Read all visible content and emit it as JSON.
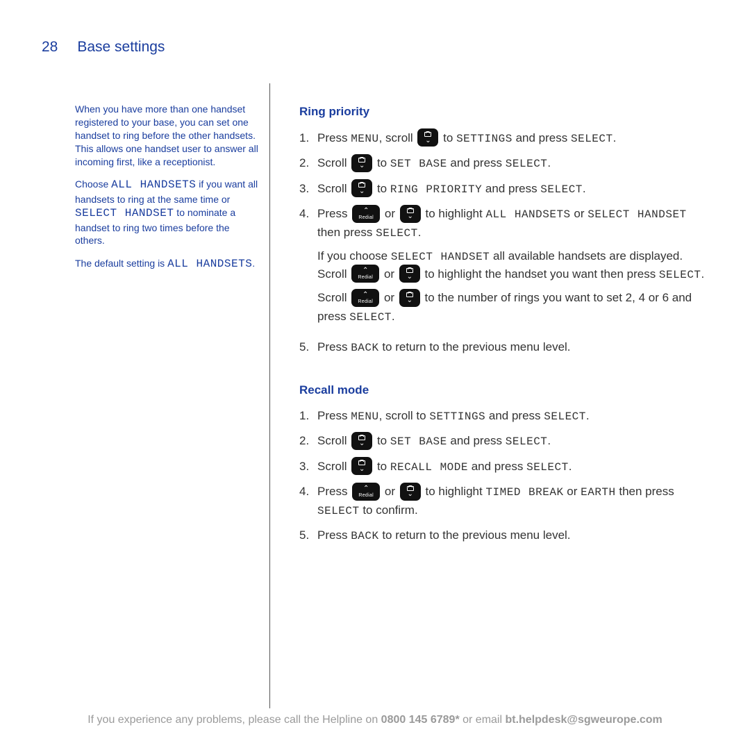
{
  "header": {
    "page_number": "28",
    "title": "Base settings"
  },
  "sidebar": {
    "para1": "When you have more than one handset registered to your base, you can set one handset to ring before the other handsets. This allows one handset user to answer all incoming first, like a receptionist.",
    "para2_pre": "Choose ",
    "para2_lcd1": "ALL HANDSETS",
    "para2_mid": " if you want all handsets to ring at the same time or ",
    "para2_lcd2": "SELECT HANDSET",
    "para2_post": " to nominate a handset to ring two times before the others.",
    "para3_pre": "The default setting is ",
    "para3_lcd": "ALL HANDSETS",
    "para3_post": "."
  },
  "sections": [
    {
      "title": "Ring priority",
      "steps": [
        {
          "num": "1.",
          "parts": [
            {
              "t": "text",
              "v": "Press "
            },
            {
              "t": "lcd",
              "v": "MENU"
            },
            {
              "t": "text",
              "v": ", scroll "
            },
            {
              "t": "btn",
              "v": "scroll"
            },
            {
              "t": "text",
              "v": " to "
            },
            {
              "t": "lcd",
              "v": "SETTINGS"
            },
            {
              "t": "text",
              "v": " and press "
            },
            {
              "t": "lcd",
              "v": "SELECT"
            },
            {
              "t": "text",
              "v": "."
            }
          ]
        },
        {
          "num": "2.",
          "parts": [
            {
              "t": "text",
              "v": "Scroll "
            },
            {
              "t": "btn",
              "v": "scroll"
            },
            {
              "t": "text",
              "v": " to "
            },
            {
              "t": "lcd",
              "v": "SET BASE"
            },
            {
              "t": "text",
              "v": " and press "
            },
            {
              "t": "lcd",
              "v": "SELECT"
            },
            {
              "t": "text",
              "v": "."
            }
          ]
        },
        {
          "num": "3.",
          "parts": [
            {
              "t": "text",
              "v": "Scroll "
            },
            {
              "t": "btn",
              "v": "scroll"
            },
            {
              "t": "text",
              "v": " to "
            },
            {
              "t": "lcd",
              "v": "RING PRIORITY"
            },
            {
              "t": "text",
              "v": " and press "
            },
            {
              "t": "lcd",
              "v": "SELECT"
            },
            {
              "t": "text",
              "v": "."
            }
          ]
        },
        {
          "num": "4.",
          "parts": [
            {
              "t": "text",
              "v": "Press "
            },
            {
              "t": "btn",
              "v": "redial"
            },
            {
              "t": "text",
              "v": " or "
            },
            {
              "t": "btn",
              "v": "scroll"
            },
            {
              "t": "text",
              "v": "  to highlight "
            },
            {
              "t": "lcd",
              "v": "ALL HANDSETS"
            },
            {
              "t": "text",
              "v": " or "
            },
            {
              "t": "lcd",
              "v": "SELECT HANDSET"
            },
            {
              "t": "text",
              "v": " then press "
            },
            {
              "t": "lcd",
              "v": "SELECT"
            },
            {
              "t": "text",
              "v": "."
            }
          ],
          "subs": [
            [
              {
                "t": "text",
                "v": "If you choose "
              },
              {
                "t": "lcd",
                "v": "SELECT HANDSET"
              },
              {
                "t": "text",
                "v": " all available handsets are displayed. Scroll "
              },
              {
                "t": "btn",
                "v": "redial"
              },
              {
                "t": "text",
                "v": " or "
              },
              {
                "t": "btn",
                "v": "scroll"
              },
              {
                "t": "text",
                "v": " to highlight the handset you want then press "
              },
              {
                "t": "lcd",
                "v": "SELECT"
              },
              {
                "t": "text",
                "v": "."
              }
            ],
            [
              {
                "t": "text",
                "v": "Scroll "
              },
              {
                "t": "btn",
                "v": "redial"
              },
              {
                "t": "text",
                "v": " or "
              },
              {
                "t": "btn",
                "v": "scroll"
              },
              {
                "t": "text",
                "v": " to the number of rings you want to set 2, 4 or 6 and press "
              },
              {
                "t": "lcd",
                "v": "SELECT"
              },
              {
                "t": "text",
                "v": "."
              }
            ]
          ]
        },
        {
          "num": "5.",
          "parts": [
            {
              "t": "text",
              "v": "Press "
            },
            {
              "t": "lcd",
              "v": "BACK"
            },
            {
              "t": "text",
              "v": " to return to the previous menu level."
            }
          ]
        }
      ]
    },
    {
      "title": "Recall mode",
      "steps": [
        {
          "num": "1.",
          "parts": [
            {
              "t": "text",
              "v": "Press "
            },
            {
              "t": "lcd",
              "v": "MENU"
            },
            {
              "t": "text",
              "v": ", scroll  to "
            },
            {
              "t": "lcd",
              "v": "SETTINGS"
            },
            {
              "t": "text",
              "v": " and press "
            },
            {
              "t": "lcd",
              "v": "SELECT"
            },
            {
              "t": "text",
              "v": "."
            }
          ]
        },
        {
          "num": "2.",
          "parts": [
            {
              "t": "text",
              "v": "Scroll "
            },
            {
              "t": "btn",
              "v": "scroll"
            },
            {
              "t": "text",
              "v": " to "
            },
            {
              "t": "lcd",
              "v": "SET BASE"
            },
            {
              "t": "text",
              "v": " and press "
            },
            {
              "t": "lcd",
              "v": "SELECT"
            },
            {
              "t": "text",
              "v": "."
            }
          ]
        },
        {
          "num": "3.",
          "parts": [
            {
              "t": "text",
              "v": "Scroll "
            },
            {
              "t": "btn",
              "v": "scroll"
            },
            {
              "t": "text",
              "v": " to "
            },
            {
              "t": "lcd",
              "v": "RECALL MODE"
            },
            {
              "t": "text",
              "v": " and press "
            },
            {
              "t": "lcd",
              "v": "SELECT"
            },
            {
              "t": "text",
              "v": "."
            }
          ]
        },
        {
          "num": "4.",
          "parts": [
            {
              "t": "text",
              "v": "Press "
            },
            {
              "t": "btn",
              "v": "redial"
            },
            {
              "t": "text",
              "v": " or "
            },
            {
              "t": "btn",
              "v": "scroll"
            },
            {
              "t": "text",
              "v": " to highlight "
            },
            {
              "t": "lcd",
              "v": "TIMED BREAK"
            },
            {
              "t": "text",
              "v": " or "
            },
            {
              "t": "lcd",
              "v": "EARTH"
            },
            {
              "t": "text",
              "v": " then press "
            },
            {
              "t": "lcd",
              "v": "SELECT"
            },
            {
              "t": "text",
              "v": " to confirm."
            }
          ]
        },
        {
          "num": "5.",
          "parts": [
            {
              "t": "text",
              "v": "Press "
            },
            {
              "t": "lcd",
              "v": "BACK"
            },
            {
              "t": "text",
              "v": " to return to the previous menu level."
            }
          ]
        }
      ]
    }
  ],
  "buttons": {
    "redial_label": "Redial"
  },
  "footer": {
    "pre": "If you experience any problems, please call the Helpline on ",
    "phone": "0800 145 6789*",
    "mid": " or email ",
    "email": "bt.helpdesk@sgweurope.com"
  },
  "colors": {
    "brand_blue": "#1a3d9e",
    "body_text": "#333333",
    "footer_gray": "#9a9a9a",
    "button_bg": "#111111",
    "button_fg": "#ffffff",
    "divider": "#555555",
    "background": "#ffffff"
  },
  "typography": {
    "header_fontsize_pt": 16,
    "sidebar_fontsize_pt": 10.5,
    "body_fontsize_pt": 13,
    "footer_fontsize_pt": 12,
    "lcd_font": "monospace"
  }
}
